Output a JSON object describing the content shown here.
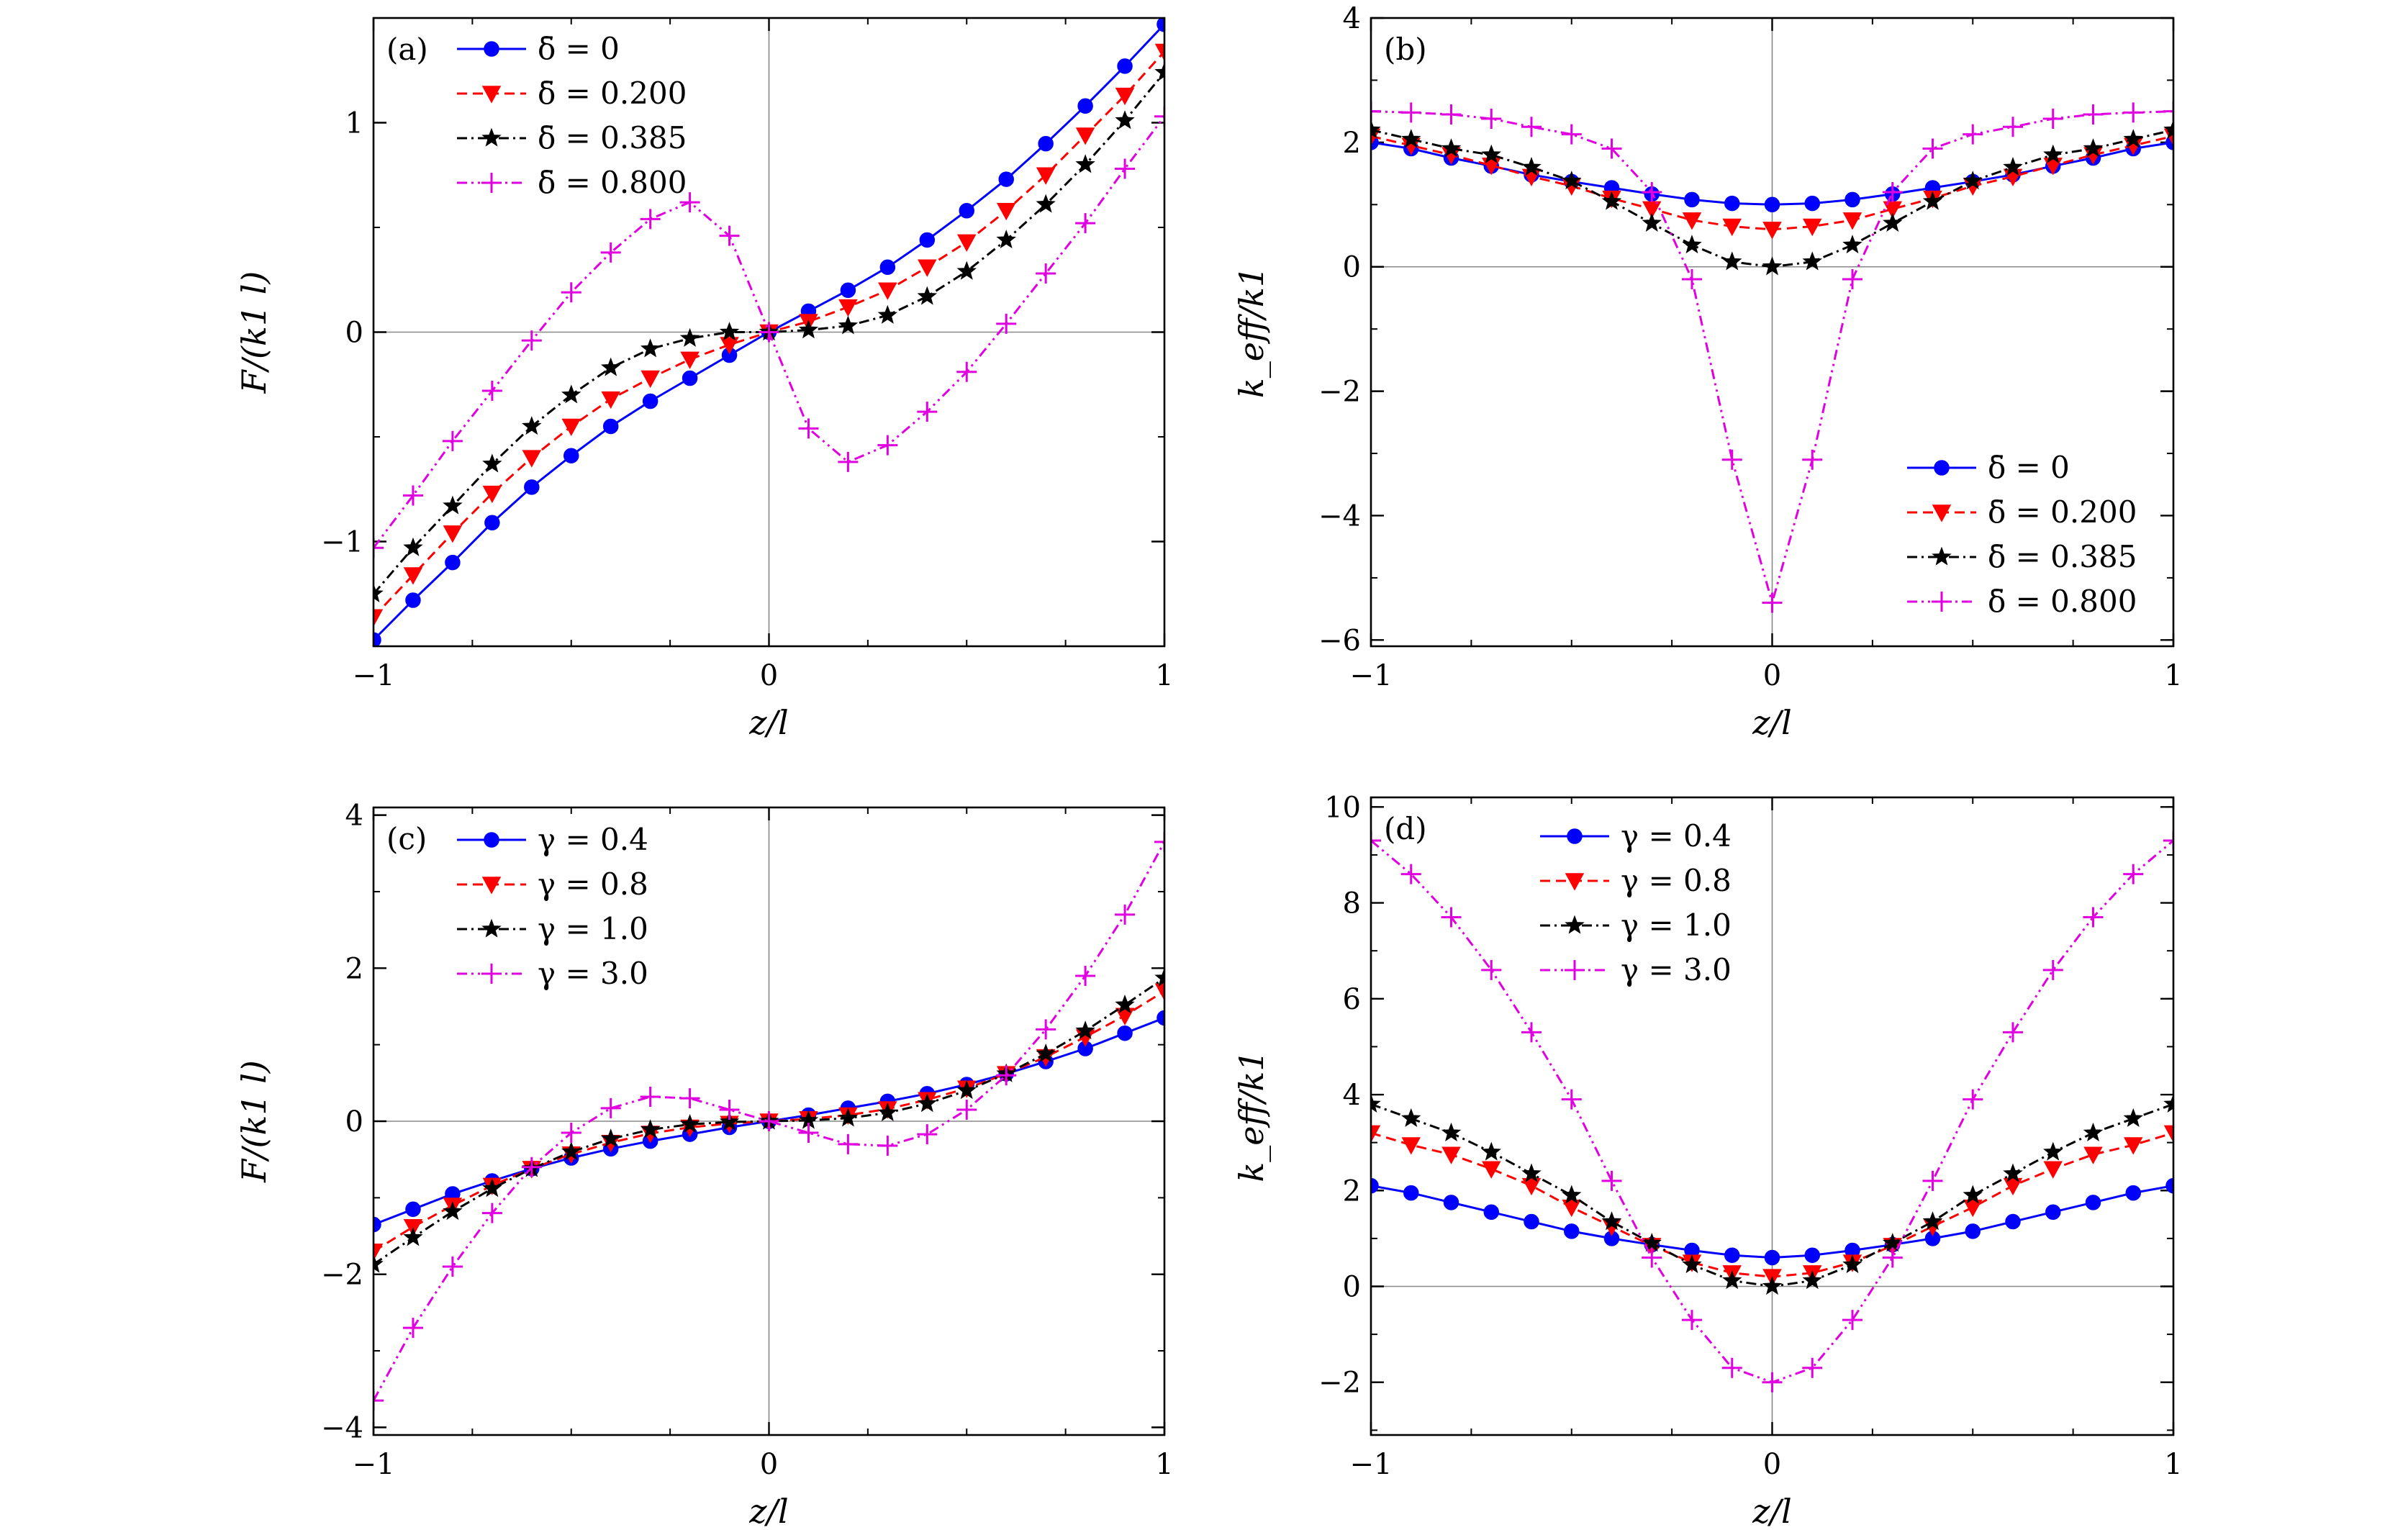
{
  "chart_data": [
    {
      "panel": "(a)",
      "type": "line",
      "xlabel": "z/l",
      "ylabel": "F/(k1 l)",
      "xlim": [
        -1,
        1
      ],
      "ylim": [
        -1.5,
        1.5
      ],
      "xticks": [
        "−1",
        "0",
        "1"
      ],
      "yticks": [
        "−1",
        "0",
        "1"
      ],
      "xtick_values": [
        -1,
        0,
        1
      ],
      "ytick_values": [
        -1,
        0,
        1
      ],
      "legend_position": "top-left",
      "x": [
        -1,
        -0.9,
        -0.8,
        -0.7,
        -0.6,
        -0.5,
        -0.4,
        -0.3,
        -0.2,
        -0.1,
        0,
        0.1,
        0.2,
        0.3,
        0.4,
        0.5,
        0.6,
        0.7,
        0.8,
        0.9,
        1
      ],
      "series": [
        {
          "name": "δ̄ = 0",
          "marker": "circle",
          "color": "#0000ff",
          "dash": "",
          "values": [
            -1.47,
            -1.28,
            -1.1,
            -0.91,
            -0.74,
            -0.59,
            -0.45,
            -0.33,
            -0.22,
            -0.11,
            0,
            0.1,
            0.2,
            0.31,
            0.44,
            0.58,
            0.73,
            0.9,
            1.08,
            1.27,
            1.47
          ]
        },
        {
          "name": "δ̄ = 0.200",
          "marker": "triangle-down",
          "color": "#ff0000",
          "dash": "14,8",
          "values": [
            -1.36,
            -1.16,
            -0.96,
            -0.77,
            -0.6,
            -0.45,
            -0.32,
            -0.22,
            -0.13,
            -0.06,
            0,
            0.05,
            0.12,
            0.2,
            0.31,
            0.43,
            0.58,
            0.75,
            0.94,
            1.13,
            1.34
          ]
        },
        {
          "name": "δ̄ = 0.385",
          "marker": "star",
          "color": "#000000",
          "dash": "14,6,3,6",
          "values": [
            -1.25,
            -1.03,
            -0.83,
            -0.63,
            -0.45,
            -0.3,
            -0.17,
            -0.08,
            -0.03,
            0,
            0,
            0.01,
            0.03,
            0.08,
            0.17,
            0.29,
            0.44,
            0.61,
            0.8,
            1.01,
            1.24
          ]
        },
        {
          "name": "δ̄ = 0.800",
          "marker": "plus",
          "color": "#e000e0",
          "dash": "14,6,3,6,3,6",
          "values": [
            -1.03,
            -0.78,
            -0.52,
            -0.28,
            -0.04,
            0.19,
            0.38,
            0.54,
            0.62,
            0.46,
            0,
            -0.46,
            -0.62,
            -0.54,
            -0.38,
            -0.19,
            0.04,
            0.28,
            0.52,
            0.78,
            1.03
          ]
        }
      ]
    },
    {
      "panel": "(b)",
      "type": "line",
      "xlabel": "z/l",
      "ylabel": "k_eff/k1",
      "xlim": [
        -1,
        1
      ],
      "ylim": [
        -6.1,
        4
      ],
      "xticks": [
        "−1",
        "0",
        "1"
      ],
      "yticks": [
        "−6",
        "−4",
        "−2",
        "0",
        "2",
        "4"
      ],
      "xtick_values": [
        -1,
        0,
        1
      ],
      "ytick_values": [
        -6,
        -4,
        -2,
        0,
        2,
        4
      ],
      "legend_position": "bottom-right",
      "x": [
        -1,
        -0.9,
        -0.8,
        -0.7,
        -0.6,
        -0.5,
        -0.4,
        -0.3,
        -0.2,
        -0.1,
        0,
        0.1,
        0.2,
        0.3,
        0.4,
        0.5,
        0.6,
        0.7,
        0.8,
        0.9,
        1
      ],
      "series": [
        {
          "name": "δ̄ = 0",
          "marker": "circle",
          "color": "#0000ff",
          "dash": "",
          "values": [
            2.0,
            1.9,
            1.75,
            1.62,
            1.48,
            1.37,
            1.27,
            1.17,
            1.08,
            1.02,
            1.0,
            1.02,
            1.08,
            1.17,
            1.27,
            1.37,
            1.48,
            1.62,
            1.75,
            1.9,
            2.0
          ]
        },
        {
          "name": "δ̄ = 0.200",
          "marker": "triangle-down",
          "color": "#ff0000",
          "dash": "14,8",
          "values": [
            2.1,
            1.95,
            1.8,
            1.63,
            1.45,
            1.3,
            1.1,
            0.93,
            0.75,
            0.65,
            0.6,
            0.65,
            0.75,
            0.93,
            1.1,
            1.3,
            1.45,
            1.63,
            1.8,
            1.95,
            2.1
          ]
        },
        {
          "name": "δ̄ = 0.385",
          "marker": "star",
          "color": "#000000",
          "dash": "14,6,3,6",
          "values": [
            2.2,
            2.05,
            1.9,
            1.8,
            1.6,
            1.38,
            1.05,
            0.7,
            0.35,
            0.08,
            0,
            0.08,
            0.35,
            0.7,
            1.05,
            1.38,
            1.6,
            1.8,
            1.9,
            2.05,
            2.2
          ]
        },
        {
          "name": "δ̄ = 0.800",
          "marker": "plus",
          "color": "#e000e0",
          "dash": "14,6,3,6,3,6",
          "values": [
            2.5,
            2.48,
            2.45,
            2.38,
            2.25,
            2.13,
            1.9,
            1.2,
            -0.2,
            -3.1,
            -5.4,
            -3.1,
            -0.2,
            1.2,
            1.9,
            2.13,
            2.25,
            2.38,
            2.45,
            2.48,
            2.5
          ]
        }
      ]
    },
    {
      "panel": "(c)",
      "type": "line",
      "xlabel": "z/l",
      "ylabel": "F/(k1 l)",
      "xlim": [
        -1,
        1
      ],
      "ylim": [
        -4.1,
        4.1
      ],
      "xticks": [
        "−1",
        "0",
        "1"
      ],
      "yticks": [
        "−4",
        "−2",
        "0",
        "2",
        "4"
      ],
      "xtick_values": [
        -1,
        0,
        1
      ],
      "ytick_values": [
        -4,
        -2,
        0,
        2,
        4
      ],
      "legend_position": "top-left",
      "x": [
        -1,
        -0.9,
        -0.8,
        -0.7,
        -0.6,
        -0.5,
        -0.4,
        -0.3,
        -0.2,
        -0.1,
        0,
        0.1,
        0.2,
        0.3,
        0.4,
        0.5,
        0.6,
        0.7,
        0.8,
        0.9,
        1
      ],
      "series": [
        {
          "name": "γ = 0.4",
          "marker": "circle",
          "color": "#0000ff",
          "dash": "",
          "values": [
            -1.35,
            -1.15,
            -0.95,
            -0.78,
            -0.62,
            -0.48,
            -0.36,
            -0.26,
            -0.17,
            -0.08,
            0,
            0.08,
            0.17,
            0.26,
            0.36,
            0.48,
            0.62,
            0.78,
            0.95,
            1.15,
            1.35
          ]
        },
        {
          "name": "γ = 0.8",
          "marker": "triangle-down",
          "color": "#ff0000",
          "dash": "14,8",
          "values": [
            -1.7,
            -1.38,
            -1.1,
            -0.84,
            -0.62,
            -0.43,
            -0.28,
            -0.16,
            -0.08,
            -0.03,
            0,
            0.03,
            0.08,
            0.16,
            0.28,
            0.43,
            0.62,
            0.84,
            1.1,
            1.38,
            1.7
          ]
        },
        {
          "name": "γ = 1.0",
          "marker": "star",
          "color": "#000000",
          "dash": "14,6,3,6",
          "values": [
            -1.87,
            -1.52,
            -1.18,
            -0.88,
            -0.62,
            -0.4,
            -0.23,
            -0.11,
            -0.04,
            -0.01,
            0,
            0.01,
            0.04,
            0.11,
            0.23,
            0.4,
            0.62,
            0.88,
            1.18,
            1.52,
            1.87
          ]
        },
        {
          "name": "γ = 3.0",
          "marker": "plus",
          "color": "#e000e0",
          "dash": "14,6,3,6,3,6",
          "values": [
            -3.65,
            -2.7,
            -1.9,
            -1.2,
            -0.6,
            -0.15,
            0.17,
            0.32,
            0.3,
            0.15,
            0,
            -0.15,
            -0.3,
            -0.32,
            -0.17,
            0.15,
            0.6,
            1.2,
            1.9,
            2.7,
            3.65
          ]
        }
      ]
    },
    {
      "panel": "(d)",
      "type": "line",
      "xlabel": "z/l",
      "ylabel": "k_eff/k1",
      "xlim": [
        -1,
        1
      ],
      "ylim": [
        -3.1,
        10.2
      ],
      "xticks": [
        "−1",
        "0",
        "1"
      ],
      "yticks": [
        "−2",
        "0",
        "2",
        "4",
        "6",
        "8",
        "10"
      ],
      "xtick_values": [
        -1,
        0,
        1
      ],
      "ytick_values": [
        -2,
        0,
        2,
        4,
        6,
        8,
        10
      ],
      "legend_position": "top-left",
      "x": [
        -1,
        -0.9,
        -0.8,
        -0.7,
        -0.6,
        -0.5,
        -0.4,
        -0.3,
        -0.2,
        -0.1,
        0,
        0.1,
        0.2,
        0.3,
        0.4,
        0.5,
        0.6,
        0.7,
        0.8,
        0.9,
        1
      ],
      "series": [
        {
          "name": "γ = 0.4",
          "marker": "circle",
          "color": "#0000ff",
          "dash": "",
          "values": [
            2.1,
            1.95,
            1.75,
            1.55,
            1.35,
            1.15,
            1.0,
            0.87,
            0.75,
            0.65,
            0.6,
            0.65,
            0.75,
            0.87,
            1.0,
            1.15,
            1.35,
            1.55,
            1.75,
            1.95,
            2.1
          ]
        },
        {
          "name": "γ = 0.8",
          "marker": "triangle-down",
          "color": "#ff0000",
          "dash": "14,8",
          "values": [
            3.2,
            2.95,
            2.75,
            2.45,
            2.1,
            1.65,
            1.25,
            0.85,
            0.5,
            0.28,
            0.2,
            0.28,
            0.5,
            0.85,
            1.25,
            1.65,
            2.1,
            2.45,
            2.75,
            2.95,
            3.2
          ]
        },
        {
          "name": "γ = 1.0",
          "marker": "star",
          "color": "#000000",
          "dash": "14,6,3,6",
          "values": [
            3.8,
            3.5,
            3.2,
            2.8,
            2.35,
            1.9,
            1.35,
            0.9,
            0.45,
            0.12,
            0,
            0.12,
            0.45,
            0.9,
            1.35,
            1.9,
            2.35,
            2.8,
            3.2,
            3.5,
            3.8
          ]
        },
        {
          "name": "γ = 3.0",
          "marker": "plus",
          "color": "#e000e0",
          "dash": "14,6,3,6,3,6",
          "values": [
            9.3,
            8.6,
            7.7,
            6.6,
            5.3,
            3.9,
            2.2,
            0.6,
            -0.7,
            -1.7,
            -2.0,
            -1.7,
            -0.7,
            0.6,
            2.2,
            3.9,
            5.3,
            6.6,
            7.7,
            8.6,
            9.3
          ]
        }
      ]
    }
  ]
}
